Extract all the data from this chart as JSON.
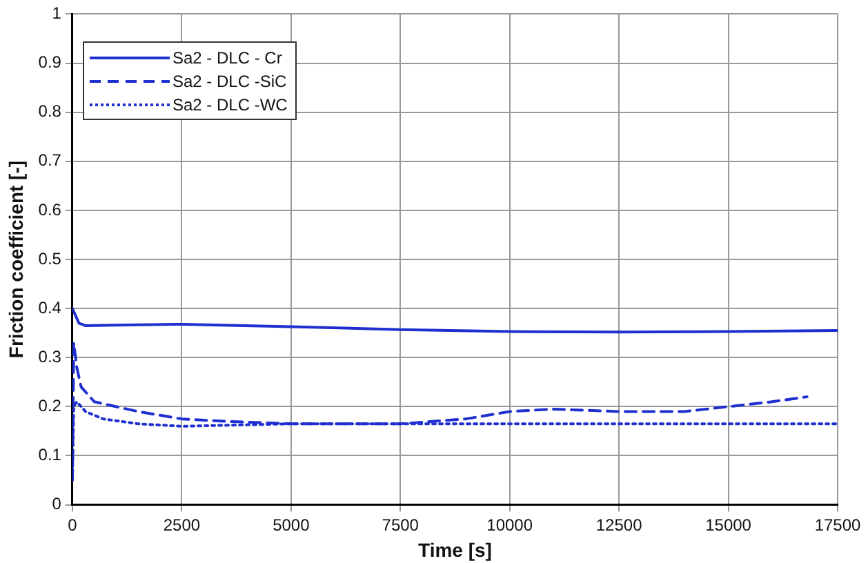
{
  "chart_data": {
    "type": "line",
    "xlabel": "Time [s]",
    "ylabel": "Friction coefficient [-]",
    "xlim": [
      0,
      17500
    ],
    "xticks": [
      0,
      2500,
      5000,
      7500,
      10000,
      12500,
      15000,
      17500
    ],
    "ylim": [
      0,
      1
    ],
    "yticks": [
      0,
      0.1,
      0.2,
      0.3,
      0.4,
      0.5,
      0.6,
      0.7,
      0.8,
      0.9,
      1
    ],
    "grid": true,
    "legend": "top left",
    "marker": "none",
    "series": [
      {
        "name": "Sa2 - DLC - Cr",
        "color": "#1f2fd0",
        "line_style": "solid",
        "x": [
          0,
          50,
          150,
          300,
          1000,
          2500,
          5000,
          7500,
          10000,
          12500,
          15000,
          17500
        ],
        "values": [
          0.4,
          0.39,
          0.37,
          0.365,
          0.366,
          0.368,
          0.363,
          0.357,
          0.353,
          0.352,
          0.353,
          0.355
        ]
      },
      {
        "name": "Sa2 - DLC -SiC",
        "color": "#1f2fd0",
        "line_style": "dashed",
        "x": [
          0,
          30,
          100,
          200,
          500,
          1500,
          2500,
          3500,
          5000,
          7500,
          9000,
          10000,
          11000,
          12500,
          14000,
          15000,
          16000,
          16800
        ],
        "values": [
          0.05,
          0.33,
          0.28,
          0.24,
          0.21,
          0.19,
          0.175,
          0.17,
          0.165,
          0.165,
          0.175,
          0.19,
          0.195,
          0.19,
          0.19,
          0.2,
          0.21,
          0.22
        ]
      },
      {
        "name": "Sa2 - DLC -WC",
        "color": "#1f2fd0",
        "line_style": "dotted",
        "x": [
          0,
          30,
          100,
          300,
          700,
          1500,
          2500,
          5000,
          10000,
          17500
        ],
        "values": [
          0.05,
          0.2,
          0.21,
          0.19,
          0.175,
          0.165,
          0.16,
          0.165,
          0.165,
          0.165
        ]
      }
    ]
  }
}
